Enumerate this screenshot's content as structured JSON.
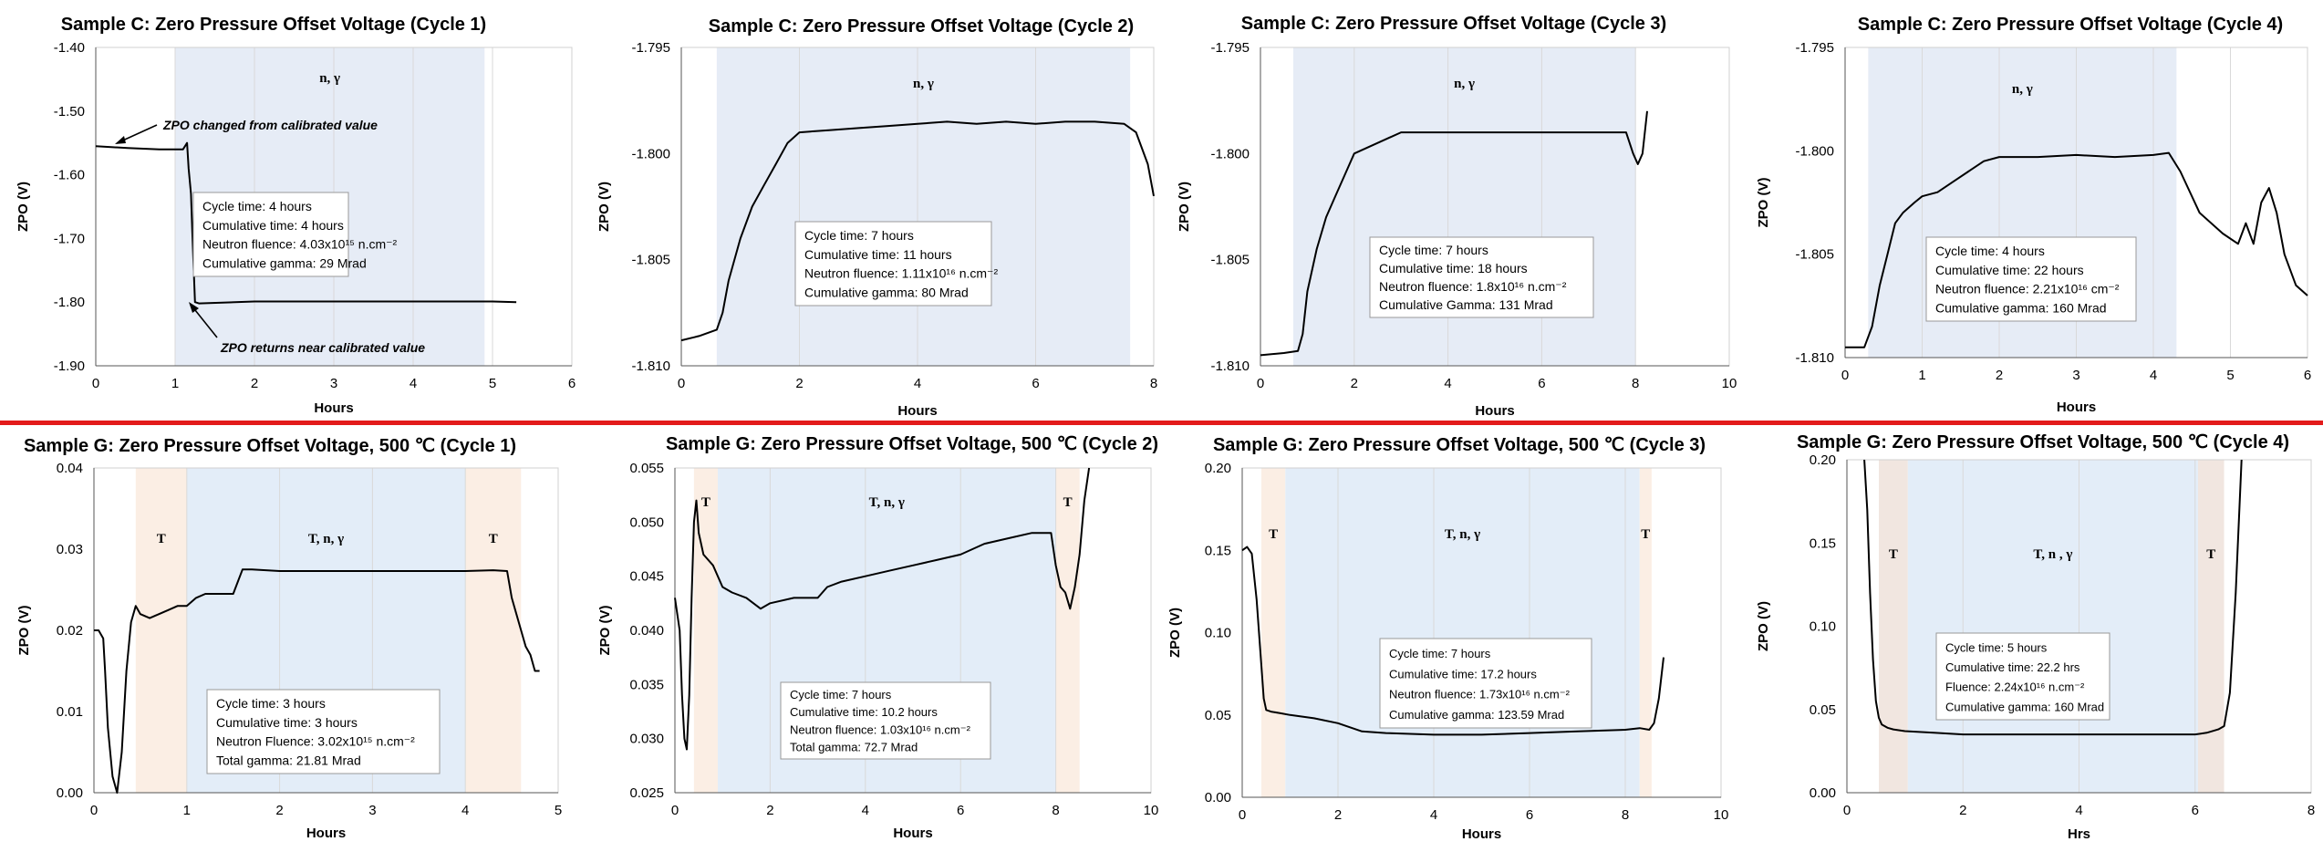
{
  "chart_data": [
    {
      "type": "line",
      "title": "Sample C: Zero Pressure Offset Voltage (Cycle 1)",
      "xlabel": "Hours",
      "ylabel": "ZPO (V)",
      "xlim": [
        0,
        6
      ],
      "ylim": [
        -1.9,
        -1.4
      ],
      "xticks": [
        0,
        1,
        2,
        3,
        4,
        5,
        6
      ],
      "yticks": [
        -1.9,
        -1.8,
        -1.7,
        -1.6,
        -1.5,
        -1.4
      ],
      "ytick_labels": [
        "-1.90",
        "-1.80",
        "-1.70",
        "-1.60",
        "-1.50",
        "-1.40"
      ],
      "grid": "vertical",
      "regions": [
        {
          "x0": 1.0,
          "x1": 4.9,
          "color": "#e6ecf6",
          "label": "n, γ"
        }
      ],
      "series": [
        {
          "x": [
            0,
            0.4,
            0.8,
            1.1,
            1.15,
            1.17,
            1.2,
            1.22,
            1.25,
            1.3,
            2,
            3,
            4,
            5,
            5.3
          ],
          "y": [
            -1.555,
            -1.558,
            -1.56,
            -1.56,
            -1.55,
            -1.59,
            -1.63,
            -1.7,
            -1.8,
            -1.802,
            -1.799,
            -1.799,
            -1.799,
            -1.799,
            -1.8
          ]
        }
      ],
      "annotations": [
        "ZPO changed from calibrated value",
        "ZPO returns near calibrated value"
      ],
      "info": [
        "Cycle time: 4 hours",
        "Cumulative time: 4 hours",
        "Neutron fluence: 4.03x10¹⁵ n.cm⁻²",
        "Cumulative gamma: 29 Mrad"
      ]
    },
    {
      "type": "line",
      "title": "Sample C: Zero Pressure Offset Voltage (Cycle 2)",
      "xlabel": "Hours",
      "ylabel": "ZPO (V)",
      "xlim": [
        0,
        8
      ],
      "ylim": [
        -1.81,
        -1.795
      ],
      "xticks": [
        0,
        2,
        4,
        6,
        8
      ],
      "yticks": [
        -1.81,
        -1.805,
        -1.8,
        -1.795
      ],
      "ytick_labels": [
        "-1.810",
        "-1.805",
        "-1.800",
        "-1.795"
      ],
      "grid": "vertical",
      "regions": [
        {
          "x0": 0.6,
          "x1": 7.6,
          "color": "#e6ecf6",
          "label": "n, γ"
        }
      ],
      "series": [
        {
          "x": [
            0,
            0.3,
            0.6,
            0.7,
            0.8,
            1.0,
            1.2,
            1.4,
            1.6,
            1.8,
            2.0,
            2.5,
            3.0,
            3.5,
            4.0,
            4.5,
            5.0,
            5.5,
            6.0,
            6.5,
            7.0,
            7.5,
            7.7,
            7.9,
            8.0
          ],
          "y": [
            -1.8088,
            -1.8086,
            -1.8083,
            -1.8075,
            -1.806,
            -1.804,
            -1.8025,
            -1.8015,
            -1.8005,
            -1.7995,
            -1.799,
            -1.7989,
            -1.7988,
            -1.7987,
            -1.7986,
            -1.7985,
            -1.7986,
            -1.7985,
            -1.7986,
            -1.7985,
            -1.7985,
            -1.7986,
            -1.799,
            -1.8005,
            -1.802
          ]
        }
      ],
      "info": [
        "Cycle time: 7 hours",
        "Cumulative time: 11 hours",
        "Neutron fluence: 1.11x10¹⁶ n.cm⁻²",
        "Cumulative gamma: 80 Mrad"
      ]
    },
    {
      "type": "line",
      "title": "Sample C: Zero Pressure Offset Voltage (Cycle 3)",
      "xlabel": "Hours",
      "ylabel": "ZPO (V)",
      "xlim": [
        0,
        10
      ],
      "ylim": [
        -1.81,
        -1.795
      ],
      "xticks": [
        0,
        2,
        4,
        6,
        8,
        10
      ],
      "yticks": [
        -1.81,
        -1.805,
        -1.8,
        -1.795
      ],
      "ytick_labels": [
        "-1.810",
        "-1.805",
        "-1.800",
        "-1.795"
      ],
      "grid": "vertical",
      "regions": [
        {
          "x0": 0.7,
          "x1": 8.0,
          "color": "#e6ecf6",
          "label": "n, γ"
        }
      ],
      "series": [
        {
          "x": [
            0,
            0.5,
            0.8,
            0.9,
            1.0,
            1.2,
            1.4,
            1.6,
            1.8,
            2.0,
            2.5,
            3.0,
            4.0,
            5.0,
            6.0,
            7.0,
            7.8,
            7.95,
            8.05,
            8.15,
            8.25
          ],
          "y": [
            -1.8095,
            -1.8094,
            -1.8093,
            -1.8085,
            -1.8065,
            -1.8045,
            -1.803,
            -1.802,
            -1.801,
            -1.8,
            -1.7995,
            -1.799,
            -1.799,
            -1.799,
            -1.799,
            -1.799,
            -1.799,
            -1.8,
            -1.8005,
            -1.8,
            -1.798
          ]
        }
      ],
      "info": [
        "Cycle time: 7 hours",
        "Cumulative time: 18 hours",
        "Neutron fluence: 1.8x10¹⁶ n.cm⁻²",
        "Cumulative Gamma: 131 Mrad"
      ]
    },
    {
      "type": "line",
      "title": "Sample C: Zero Pressure Offset Voltage (Cycle 4)",
      "xlabel": "Hours",
      "ylabel": "ZPO (V)",
      "xlim": [
        0,
        6
      ],
      "ylim": [
        -1.81,
        -1.795
      ],
      "xticks": [
        0,
        1,
        2,
        3,
        4,
        5,
        6
      ],
      "yticks": [
        -1.81,
        -1.805,
        -1.8,
        -1.795
      ],
      "ytick_labels": [
        "-1.810",
        "-1.805",
        "-1.800",
        "-1.795"
      ],
      "grid": "vertical",
      "regions": [
        {
          "x0": 0.3,
          "x1": 4.3,
          "color": "#e6ecf6",
          "label": "n, γ"
        }
      ],
      "series": [
        {
          "x": [
            0,
            0.25,
            0.35,
            0.45,
            0.55,
            0.65,
            0.75,
            0.9,
            1.0,
            1.2,
            1.4,
            1.6,
            1.8,
            2.0,
            2.5,
            3.0,
            3.5,
            4.0,
            4.2,
            4.35,
            4.6,
            4.9,
            5.1,
            5.2,
            5.3,
            5.4,
            5.5,
            5.6,
            5.7,
            5.85,
            6.0
          ],
          "y": [
            -1.8095,
            -1.8095,
            -1.8085,
            -1.8065,
            -1.805,
            -1.8035,
            -1.803,
            -1.8025,
            -1.8022,
            -1.802,
            -1.8015,
            -1.801,
            -1.8005,
            -1.8003,
            -1.8003,
            -1.8002,
            -1.8003,
            -1.8002,
            -1.8001,
            -1.801,
            -1.803,
            -1.804,
            -1.8045,
            -1.8035,
            -1.8045,
            -1.8025,
            -1.8018,
            -1.803,
            -1.805,
            -1.8065,
            -1.807
          ]
        }
      ],
      "info": [
        "Cycle time: 4 hours",
        "Cumulative time: 22 hours",
        "Neutron fluence: 2.21x10¹⁶ cm⁻²",
        "Cumulative gamma: 160 Mrad"
      ]
    },
    {
      "type": "line",
      "title": "Sample G: Zero Pressure Offset Voltage, 500 ℃ (Cycle 1)",
      "xlabel": "Hours",
      "ylabel": "ZPO (V)",
      "xlim": [
        0,
        5
      ],
      "ylim": [
        0.0,
        0.04
      ],
      "xticks": [
        0,
        1,
        2,
        3,
        4,
        5
      ],
      "yticks": [
        0.0,
        0.01,
        0.02,
        0.03,
        0.04
      ],
      "ytick_labels": [
        "0.00",
        "0.01",
        "0.02",
        "0.03",
        "0.04"
      ],
      "grid": "vertical",
      "regions": [
        {
          "x0": 0.45,
          "x1": 1.0,
          "color": "#fbeee4",
          "label": "T"
        },
        {
          "x0": 1.0,
          "x1": 4.0,
          "color": "#e3edf8",
          "label": "T, n, γ"
        },
        {
          "x0": 4.0,
          "x1": 4.6,
          "color": "#fbeee4",
          "label": "T"
        }
      ],
      "series": [
        {
          "x": [
            0,
            0.05,
            0.1,
            0.12,
            0.15,
            0.2,
            0.25,
            0.3,
            0.35,
            0.4,
            0.45,
            0.5,
            0.6,
            0.7,
            0.8,
            0.9,
            1.0,
            1.1,
            1.2,
            1.5,
            1.55,
            1.6,
            1.7,
            2.0,
            2.5,
            3.0,
            3.5,
            4.0,
            4.3,
            4.45,
            4.5,
            4.55,
            4.6,
            4.65,
            4.7,
            4.75,
            4.8
          ],
          "y": [
            0.02,
            0.02,
            0.019,
            0.015,
            0.008,
            0.002,
            -0.001,
            0.005,
            0.015,
            0.021,
            0.023,
            0.022,
            0.0215,
            0.022,
            0.0225,
            0.023,
            0.023,
            0.024,
            0.0245,
            0.0245,
            0.026,
            0.0275,
            0.0275,
            0.0273,
            0.0273,
            0.0273,
            0.0273,
            0.0273,
            0.0274,
            0.0273,
            0.024,
            0.022,
            0.02,
            0.018,
            0.017,
            0.015,
            0.015
          ]
        }
      ],
      "info": [
        "Cycle time: 3 hours",
        "Cumulative time: 3 hours",
        "Neutron Fluence: 3.02x10¹⁵ n.cm⁻²",
        "Total gamma: 21.81 Mrad"
      ]
    },
    {
      "type": "line",
      "title": "Sample G: Zero Pressure Offset Voltage, 500 ℃ (Cycle 2)",
      "xlabel": "Hours",
      "ylabel": "ZPO (V)",
      "xlim": [
        0,
        10
      ],
      "ylim": [
        0.025,
        0.055
      ],
      "xticks": [
        0,
        2,
        4,
        6,
        8,
        10
      ],
      "yticks": [
        0.025,
        0.03,
        0.035,
        0.04,
        0.045,
        0.05,
        0.055
      ],
      "ytick_labels": [
        "0.025",
        "0.030",
        "0.035",
        "0.040",
        "0.045",
        "0.050",
        "0.055"
      ],
      "grid": "vertical",
      "regions": [
        {
          "x0": 0.4,
          "x1": 0.9,
          "color": "#fbeee4",
          "label": "T"
        },
        {
          "x0": 0.9,
          "x1": 8.0,
          "color": "#e3edf8",
          "label": "T, n, γ"
        },
        {
          "x0": 8.0,
          "x1": 8.5,
          "color": "#fbeee4",
          "label": "T"
        }
      ],
      "series": [
        {
          "x": [
            0,
            0.1,
            0.15,
            0.2,
            0.25,
            0.3,
            0.35,
            0.4,
            0.45,
            0.5,
            0.6,
            0.8,
            1.0,
            1.2,
            1.5,
            1.8,
            2.0,
            2.5,
            3.0,
            3.2,
            3.5,
            4.0,
            4.5,
            5.0,
            5.5,
            6.0,
            6.5,
            7.0,
            7.5,
            7.9,
            8.0,
            8.1,
            8.2,
            8.3,
            8.4,
            8.5,
            8.6,
            8.7
          ],
          "y": [
            0.043,
            0.04,
            0.034,
            0.03,
            0.029,
            0.034,
            0.043,
            0.05,
            0.052,
            0.049,
            0.047,
            0.046,
            0.044,
            0.0435,
            0.043,
            0.042,
            0.0425,
            0.043,
            0.043,
            0.044,
            0.0445,
            0.045,
            0.0455,
            0.046,
            0.0465,
            0.047,
            0.048,
            0.0485,
            0.049,
            0.049,
            0.046,
            0.044,
            0.0435,
            0.042,
            0.044,
            0.047,
            0.052,
            0.056
          ]
        }
      ],
      "info": [
        "Cycle time: 7 hours",
        "Cumulative time: 10.2 hours",
        "Neutron fluence: 1.03x10¹⁶ n.cm⁻²",
        "Total gamma: 72.7 Mrad"
      ]
    },
    {
      "type": "line",
      "title": "Sample G: Zero Pressure Offset Voltage, 500 ℃ (Cycle 3)",
      "xlabel": "Hours",
      "ylabel": "ZPO (V)",
      "xlim": [
        0,
        10
      ],
      "ylim": [
        0.0,
        0.2
      ],
      "xticks": [
        0,
        2,
        4,
        6,
        8,
        10
      ],
      "yticks": [
        0.0,
        0.05,
        0.1,
        0.15,
        0.2
      ],
      "ytick_labels": [
        "0.00",
        "0.05",
        "0.10",
        "0.15",
        "0.20"
      ],
      "grid": "vertical",
      "regions": [
        {
          "x0": 0.4,
          "x1": 0.9,
          "color": "#fbeee4",
          "label": "T"
        },
        {
          "x0": 0.9,
          "x1": 8.3,
          "color": "#e3edf8",
          "label": "T, n, γ"
        },
        {
          "x0": 8.3,
          "x1": 8.55,
          "color": "#fbeee4",
          "label": "T"
        }
      ],
      "series": [
        {
          "x": [
            0,
            0.1,
            0.2,
            0.3,
            0.4,
            0.45,
            0.5,
            0.6,
            0.8,
            1.0,
            1.5,
            2.0,
            2.5,
            3.0,
            4.0,
            5.0,
            6.0,
            7.0,
            8.0,
            8.3,
            8.5,
            8.6,
            8.7,
            8.8
          ],
          "y": [
            0.15,
            0.152,
            0.148,
            0.12,
            0.08,
            0.06,
            0.053,
            0.052,
            0.051,
            0.05,
            0.048,
            0.045,
            0.04,
            0.039,
            0.038,
            0.038,
            0.039,
            0.04,
            0.041,
            0.042,
            0.041,
            0.045,
            0.06,
            0.085
          ]
        }
      ],
      "info": [
        "Cycle time: 7 hours",
        "Cumulative time: 17.2 hours",
        "Neutron fluence: 1.73x10¹⁶ n.cm⁻²",
        "Cumulative gamma: 123.59 Mrad"
      ]
    },
    {
      "type": "line",
      "title": "Sample G: Zero Pressure Offset Voltage, 500 ℃ (Cycle 4)",
      "xlabel": "Hrs",
      "ylabel": "ZPO (V)",
      "xlim": [
        0,
        8
      ],
      "ylim": [
        0.0,
        0.2
      ],
      "xticks": [
        0,
        2,
        4,
        6,
        8
      ],
      "yticks": [
        0.0,
        0.05,
        0.1,
        0.15,
        0.2
      ],
      "ytick_labels": [
        "0.00",
        "0.05",
        "0.10",
        "0.15",
        "0.20"
      ],
      "grid": "vertical",
      "regions": [
        {
          "x0": 0.55,
          "x1": 1.05,
          "color": "#f1e6e0",
          "label": "T"
        },
        {
          "x0": 1.05,
          "x1": 6.05,
          "color": "#e3edf8",
          "label": "T, n , γ"
        },
        {
          "x0": 6.05,
          "x1": 6.5,
          "color": "#f1e6e0",
          "label": "T"
        }
      ],
      "series": [
        {
          "x": [
            0.3,
            0.35,
            0.4,
            0.45,
            0.5,
            0.55,
            0.6,
            0.7,
            0.8,
            1.0,
            1.5,
            2.0,
            3.0,
            4.0,
            5.0,
            6.0,
            6.2,
            6.4,
            6.5,
            6.6,
            6.7,
            6.8
          ],
          "y": [
            0.21,
            0.17,
            0.12,
            0.08,
            0.055,
            0.045,
            0.041,
            0.039,
            0.038,
            0.037,
            0.036,
            0.035,
            0.035,
            0.035,
            0.035,
            0.035,
            0.036,
            0.038,
            0.04,
            0.06,
            0.12,
            0.21
          ]
        }
      ],
      "info": [
        "Cycle time: 5 hours",
        "Cumulative time: 22.2 hrs",
        "Fluence: 2.24x10¹⁶ n.cm⁻²",
        "Cumulative gamma: 160 Mrad"
      ]
    }
  ]
}
